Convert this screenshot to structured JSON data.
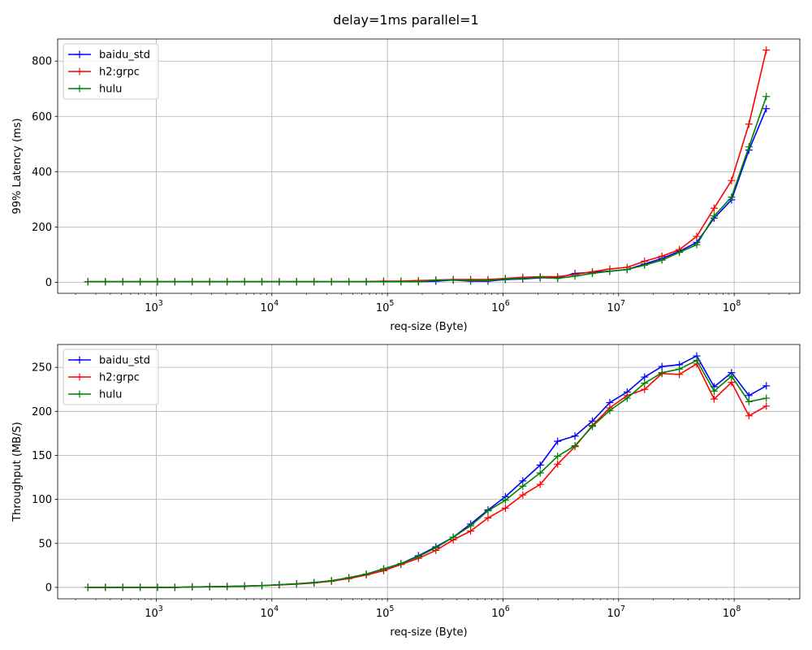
{
  "figure": {
    "suptitle": "delay=1ms parallel=1"
  },
  "chart_data": [
    {
      "type": "line",
      "xlabel": "req-size (Byte)",
      "ylabel": "99% Latency (ms)",
      "xscale": "log",
      "xlim": [
        140,
        370000000
      ],
      "ylim": [
        -40,
        880
      ],
      "x_ticks": [
        1000,
        10000,
        100000,
        1000000,
        10000000,
        100000000
      ],
      "x_tick_labels": [
        [
          "10",
          "3"
        ],
        [
          "10",
          "4"
        ],
        [
          "10",
          "5"
        ],
        [
          "10",
          "6"
        ],
        [
          "10",
          "7"
        ],
        [
          "10",
          "8"
        ]
      ],
      "y_ticks": [
        0,
        200,
        400,
        600,
        800
      ],
      "y_tick_labels": [
        "0",
        "200",
        "400",
        "600",
        "800"
      ],
      "grid": true,
      "legend": "top-left",
      "x": [
        256,
        362,
        512,
        724,
        1024,
        1448,
        2048,
        2896,
        4096,
        5793,
        8192,
        11585,
        16384,
        23170,
        32768,
        46341,
        65536,
        92682,
        131072,
        185364,
        262144,
        370728,
        524288,
        741455,
        1048576,
        1482910,
        2097152,
        2965821,
        4194304,
        5931642,
        8388608,
        11863283,
        16777216,
        23726566,
        33554432,
        47453133,
        67108864,
        94906265,
        134217728,
        189812531
      ],
      "series": [
        {
          "name": "baidu_std",
          "color": "#0000ff",
          "values": [
            2,
            2,
            2,
            2,
            2,
            2,
            2,
            2,
            2,
            2,
            2,
            2,
            2,
            2,
            2,
            2,
            2,
            2,
            2,
            2,
            4,
            8,
            4,
            4,
            10,
            12,
            16,
            16,
            32,
            36,
            40,
            46,
            66,
            86,
            112,
            144,
            232,
            298,
            478,
            628
          ]
        },
        {
          "name": "h2:grpc",
          "color": "#ff0000",
          "values": [
            2,
            2,
            2,
            2,
            2,
            2,
            2,
            2,
            2,
            2,
            2,
            2,
            2,
            2,
            2,
            2,
            2,
            4,
            4,
            6,
            8,
            10,
            10,
            10,
            14,
            18,
            20,
            20,
            28,
            38,
            48,
            54,
            76,
            94,
            118,
            166,
            268,
            368,
            572,
            840
          ]
        },
        {
          "name": "hulu",
          "color": "#008000",
          "values": [
            2,
            2,
            2,
            2,
            2,
            2,
            2,
            2,
            2,
            2,
            2,
            2,
            2,
            2,
            2,
            2,
            2,
            2,
            2,
            2,
            8,
            8,
            6,
            6,
            12,
            14,
            18,
            14,
            22,
            32,
            40,
            46,
            62,
            80,
            108,
            136,
            240,
            308,
            490,
            672
          ]
        }
      ]
    },
    {
      "type": "line",
      "xlabel": "req-size (Byte)",
      "ylabel": "Throughput (MB/S)",
      "xscale": "log",
      "xlim": [
        140,
        370000000
      ],
      "ylim": [
        -13,
        276
      ],
      "x_ticks": [
        1000,
        10000,
        100000,
        1000000,
        10000000,
        100000000
      ],
      "x_tick_labels": [
        [
          "10",
          "3"
        ],
        [
          "10",
          "4"
        ],
        [
          "10",
          "5"
        ],
        [
          "10",
          "6"
        ],
        [
          "10",
          "7"
        ],
        [
          "10",
          "8"
        ]
      ],
      "y_ticks": [
        0,
        50,
        100,
        150,
        200,
        250
      ],
      "y_tick_labels": [
        "0",
        "50",
        "100",
        "150",
        "200",
        "250"
      ],
      "grid": true,
      "legend": "top-left",
      "x": [
        256,
        362,
        512,
        724,
        1024,
        1448,
        2048,
        2896,
        4096,
        5793,
        8192,
        11585,
        16384,
        23170,
        32768,
        46341,
        65536,
        92682,
        131072,
        185364,
        262144,
        370728,
        524288,
        741455,
        1048576,
        1482910,
        2097152,
        2965821,
        4194304,
        5931642,
        8388608,
        11863283,
        16777216,
        23726566,
        33554432,
        47453133,
        67108864,
        94906265,
        134217728,
        189812531
      ],
      "series": [
        {
          "name": "baidu_std",
          "color": "#0000ff",
          "values": [
            0,
            0,
            0,
            0,
            0,
            0,
            0.5,
            0.7,
            1,
            1.5,
            2,
            3,
            4,
            5.5,
            7.5,
            11,
            15,
            21,
            27,
            36,
            46,
            57,
            72,
            88,
            103,
            121,
            139,
            166,
            172,
            189,
            210,
            222,
            239,
            251,
            253,
            263,
            228,
            244,
            218,
            229
          ]
        },
        {
          "name": "h2:grpc",
          "color": "#ff0000",
          "values": [
            0,
            0,
            0,
            0,
            0,
            0,
            0.5,
            0.7,
            1,
            1.4,
            2,
            2.8,
            3.7,
            5,
            7,
            10,
            14,
            19,
            26,
            33,
            42,
            54,
            64,
            79,
            90,
            105,
            117,
            140,
            160,
            184,
            204,
            218,
            225,
            243,
            242,
            254,
            214,
            233,
            195,
            206
          ]
        },
        {
          "name": "hulu",
          "color": "#008000",
          "values": [
            0,
            0,
            0,
            0,
            0,
            0,
            0.5,
            0.7,
            1,
            1.5,
            2,
            3,
            4,
            5.5,
            7.5,
            11,
            15,
            21,
            27,
            35,
            45,
            57,
            70,
            87,
            99,
            115,
            130,
            149,
            161,
            183,
            201,
            215,
            232,
            244,
            248,
            258,
            223,
            240,
            211,
            215
          ]
        }
      ]
    }
  ]
}
